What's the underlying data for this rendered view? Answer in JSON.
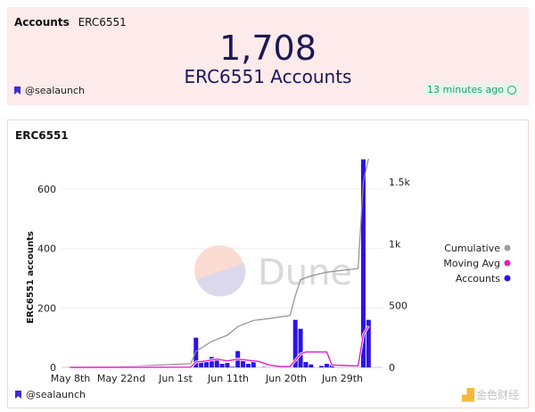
{
  "counter": {
    "title_bold": "Accounts",
    "title_rest": "ERC6551",
    "value": "1,708",
    "label": "ERC6551 Accounts",
    "author": "@sealaunch",
    "updated": "13 minutes ago"
  },
  "chart": {
    "title": "ERC6551",
    "author": "@sealaunch",
    "watermark": "Dune",
    "legend": [
      {
        "label": "Cumulative",
        "color": "#9e9e9e"
      },
      {
        "label": "Moving Avg",
        "color": "#e61cc8"
      },
      {
        "label": "Accounts",
        "color": "#2b13e8"
      }
    ],
    "left_axis_ticks": [
      "0",
      "200",
      "400",
      "600"
    ],
    "right_axis_ticks": [
      "0",
      "500",
      "1k",
      "1.5k"
    ],
    "x_ticks": [
      "May 8th",
      "May 22nd",
      "Jun 1st",
      "Jun 11th",
      "Jun 20th",
      "Jun 29th"
    ],
    "ylabel": "ERC6551 accounts",
    "bottom_overlay": "金色财经"
  },
  "chart_data": {
    "type": "bar",
    "title": "ERC6551",
    "xlabel": "",
    "ylabel": "ERC6551 accounts",
    "ylim": [
      0,
      700
    ],
    "y2lim": [
      0,
      1700
    ],
    "x_tick_labels": [
      "May 8th",
      "May 22nd",
      "Jun 1st",
      "Jun 11th",
      "Jun 20th",
      "Jun 29th"
    ],
    "legend_position": "right",
    "grid": true,
    "series": [
      {
        "name": "Accounts",
        "type": "bar",
        "axis": "left",
        "color": "#2b13e8",
        "points": [
          [
            "May 8th",
            1
          ],
          [
            "May 20th",
            3
          ],
          [
            "May 21st",
            3
          ],
          [
            "Jun 1st",
            100
          ],
          [
            "Jun 2nd",
            22
          ],
          [
            "Jun 3rd",
            18
          ],
          [
            "Jun 4th",
            35
          ],
          [
            "Jun 5th",
            28
          ],
          [
            "Jun 6th",
            12
          ],
          [
            "Jun 7th",
            15
          ],
          [
            "Jun 8th",
            2
          ],
          [
            "Jun 9th",
            55
          ],
          [
            "Jun 10th",
            22
          ],
          [
            "Jun 11th",
            12
          ],
          [
            "Jun 12th",
            25
          ],
          [
            "Jun 14th",
            1
          ],
          [
            "Jun 17th",
            5
          ],
          [
            "Jun 18th",
            3
          ],
          [
            "Jun 20th",
            160
          ],
          [
            "Jun 21st",
            130
          ],
          [
            "Jun 22nd",
            18
          ],
          [
            "Jun 23rd",
            10
          ],
          [
            "Jun 25th",
            5
          ],
          [
            "Jun 26th",
            12
          ],
          [
            "Jun 27th",
            8
          ],
          [
            "Jul 3rd",
            700
          ],
          [
            "Jul 4th",
            160
          ]
        ]
      },
      {
        "name": "Moving Avg",
        "type": "line",
        "axis": "left",
        "color": "#e61cc8",
        "points": [
          [
            "May 8th",
            0
          ],
          [
            "May 31st",
            1
          ],
          [
            "Jun 1st",
            18
          ],
          [
            "Jun 3rd",
            22
          ],
          [
            "Jun 5th",
            28
          ],
          [
            "Jun 7th",
            22
          ],
          [
            "Jun 9th",
            28
          ],
          [
            "Jun 13th",
            20
          ],
          [
            "Jun 15th",
            8
          ],
          [
            "Jun 17th",
            3
          ],
          [
            "Jun 19th",
            3
          ],
          [
            "Jun 21st",
            45
          ],
          [
            "Jun 22nd",
            52
          ],
          [
            "Jun 26th",
            52
          ],
          [
            "Jun 27th",
            8
          ],
          [
            "Jul 2nd",
            5
          ],
          [
            "Jul 3rd",
            110
          ],
          [
            "Jul 4th",
            140
          ]
        ]
      },
      {
        "name": "Cumulative",
        "type": "line",
        "axis": "right",
        "color": "#9e9e9e",
        "points": [
          [
            "May 8th",
            0
          ],
          [
            "May 20th",
            10
          ],
          [
            "May 31st",
            30
          ],
          [
            "Jun 1st",
            130
          ],
          [
            "Jun 4th",
            210
          ],
          [
            "Jun 7th",
            260
          ],
          [
            "Jun 9th",
            330
          ],
          [
            "Jun 12th",
            380
          ],
          [
            "Jun 15th",
            395
          ],
          [
            "Jun 19th",
            420
          ],
          [
            "Jun 20th",
            580
          ],
          [
            "Jun 21st",
            710
          ],
          [
            "Jun 23rd",
            740
          ],
          [
            "Jun 26th",
            770
          ],
          [
            "Jul 2nd",
            800
          ],
          [
            "Jul 3rd",
            1500
          ],
          [
            "Jul 4th",
            1708
          ]
        ]
      }
    ]
  }
}
